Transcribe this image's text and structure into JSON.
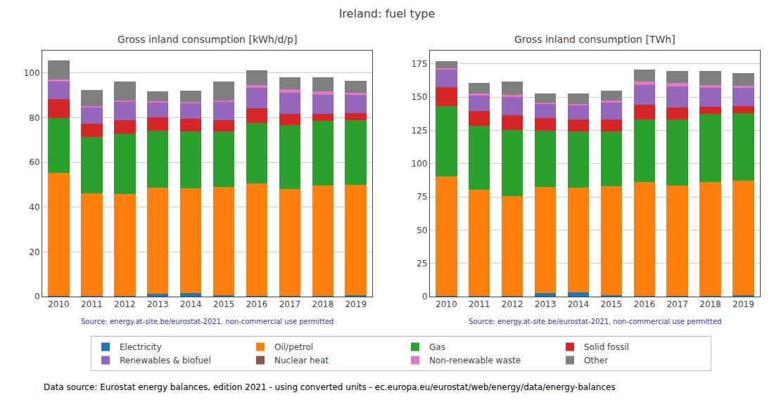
{
  "title": "Ireland: fuel type",
  "annotations": [
    "Data source: Eurostat energy balances, edition 2021 - using converted units - ec.europa.eu/eurostat/web/energy/data/energy-balances"
  ],
  "chart_data": [
    {
      "type": "bar",
      "stacked": true,
      "title": "Gross inland consumption [kWh/d/p]",
      "annotations": [
        "Source: energy.at-site.be/eurostat-2021, non-commercial use permitted"
      ],
      "categories": [
        "2010",
        "2011",
        "2012",
        "2013",
        "2014",
        "2015",
        "2016",
        "2017",
        "2018",
        "2019"
      ],
      "series": [
        {
          "name": "Electricity",
          "color": "#1f77b4",
          "values": [
            0.3,
            0.3,
            0.3,
            1.3,
            1.5,
            0.5,
            0.2,
            0.2,
            0.2,
            0.5
          ]
        },
        {
          "name": "Oil/petrol",
          "color": "#ff7f0e",
          "values": [
            55.0,
            46.0,
            45.5,
            47.5,
            47.0,
            48.5,
            50.5,
            48.0,
            49.5,
            49.5
          ]
        },
        {
          "name": "Gas",
          "color": "#2ca02c",
          "values": [
            24.5,
            25.0,
            27.0,
            25.5,
            25.5,
            25.0,
            27.0,
            28.5,
            29.0,
            29.0
          ]
        },
        {
          "name": "Solid fossil",
          "color": "#d62728",
          "values": [
            8.5,
            6.0,
            6.0,
            6.0,
            5.5,
            5.0,
            6.5,
            5.0,
            3.0,
            3.0
          ]
        },
        {
          "name": "Renewables & biofuel",
          "color": "#9467bd",
          "values": [
            8.0,
            7.5,
            8.5,
            6.5,
            7.0,
            8.0,
            9.0,
            9.5,
            8.5,
            8.5
          ]
        },
        {
          "name": "Nuclear heat",
          "color": "#8c564b",
          "values": [
            0.0,
            0.0,
            0.0,
            0.0,
            0.0,
            0.0,
            0.0,
            0.0,
            0.0,
            0.0
          ]
        },
        {
          "name": "Non-renewable waste",
          "color": "#e377c2",
          "values": [
            0.7,
            0.5,
            0.5,
            0.5,
            0.5,
            0.7,
            1.5,
            1.5,
            1.5,
            0.5
          ]
        },
        {
          "name": "Other",
          "color": "#7f7f7f",
          "values": [
            8.5,
            7.0,
            8.5,
            4.5,
            5.0,
            8.5,
            6.5,
            5.5,
            6.5,
            5.5
          ]
        }
      ],
      "ylim": [
        0,
        110
      ],
      "yticks": [
        0,
        20,
        40,
        60,
        80,
        100
      ],
      "grid": true,
      "legend": "bottom"
    },
    {
      "type": "bar",
      "stacked": true,
      "title": "Gross inland consumption [TWh]",
      "annotations": [
        "Source: energy.at-site.be/eurostat-2021, non-commercial use permitted"
      ],
      "categories": [
        "2010",
        "2011",
        "2012",
        "2013",
        "2014",
        "2015",
        "2016",
        "2017",
        "2018",
        "2019"
      ],
      "series": [
        {
          "name": "Electricity",
          "color": "#1f77b4",
          "values": [
            0.5,
            0.5,
            0.5,
            2.5,
            3.0,
            1.0,
            0.3,
            0.3,
            0.3,
            1.0
          ]
        },
        {
          "name": "Oil/petrol",
          "color": "#ff7f0e",
          "values": [
            90.0,
            80.0,
            75.0,
            80.0,
            79.0,
            82.0,
            86.0,
            83.0,
            86.0,
            86.0
          ]
        },
        {
          "name": "Gas",
          "color": "#2ca02c",
          "values": [
            53.0,
            48.0,
            50.0,
            42.0,
            42.0,
            41.0,
            47.0,
            50.0,
            51.0,
            51.0
          ]
        },
        {
          "name": "Solid fossil",
          "color": "#d62728",
          "values": [
            14.0,
            11.0,
            11.0,
            10.0,
            9.0,
            9.0,
            11.0,
            9.0,
            5.5,
            5.5
          ]
        },
        {
          "name": "Renewables & biofuel",
          "color": "#9467bd",
          "values": [
            13.0,
            12.0,
            14.0,
            10.5,
            11.0,
            13.0,
            15.0,
            16.0,
            14.0,
            14.0
          ]
        },
        {
          "name": "Nuclear heat",
          "color": "#8c564b",
          "values": [
            0.0,
            0.0,
            0.0,
            0.0,
            0.0,
            0.0,
            0.0,
            0.0,
            0.0,
            0.0
          ]
        },
        {
          "name": "Non-renewable waste",
          "color": "#e377c2",
          "values": [
            1.5,
            1.0,
            1.0,
            1.0,
            1.0,
            1.5,
            2.5,
            2.5,
            2.5,
            1.0
          ]
        },
        {
          "name": "Other",
          "color": "#7f7f7f",
          "values": [
            5.0,
            8.0,
            10.0,
            7.0,
            8.0,
            7.5,
            9.0,
            9.0,
            10.5,
            9.5
          ]
        }
      ],
      "ylim": [
        0,
        185
      ],
      "yticks": [
        0,
        25,
        50,
        75,
        100,
        125,
        150,
        175
      ],
      "grid": true
    }
  ]
}
